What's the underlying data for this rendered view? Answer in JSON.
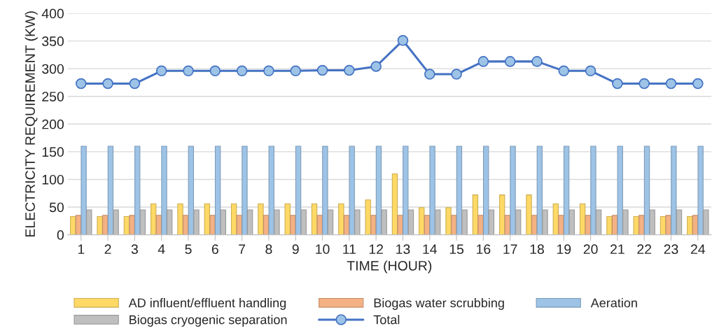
{
  "chart_data": {
    "type": "bar",
    "xlabel": "TIME (HOUR)",
    "ylabel": "ELECTRICITY REQUIREMENT (KW)",
    "categories": [
      "1",
      "2",
      "3",
      "4",
      "5",
      "6",
      "7",
      "8",
      "9",
      "10",
      "11",
      "12",
      "13",
      "14",
      "15",
      "16",
      "17",
      "18",
      "19",
      "20",
      "21",
      "22",
      "23",
      "24"
    ],
    "series": [
      {
        "name": "AD influent/effluent handling",
        "color": "#ffd966",
        "values": [
          33,
          33,
          33,
          56,
          56,
          56,
          56,
          56,
          56,
          56,
          56,
          63,
          110,
          49,
          49,
          72,
          72,
          72,
          56,
          56,
          33,
          33,
          33,
          33
        ]
      },
      {
        "name": "Biogas water scrubbing",
        "color": "#f4b183",
        "values": [
          35,
          35,
          35,
          35,
          35,
          35,
          35,
          35,
          35,
          35,
          35,
          35,
          35,
          35,
          35,
          35,
          35,
          35,
          35,
          35,
          35,
          35,
          35,
          35
        ]
      },
      {
        "name": "Aeration",
        "color": "#9dc3e6",
        "values": [
          160,
          160,
          160,
          160,
          160,
          160,
          160,
          160,
          160,
          160,
          160,
          160,
          160,
          160,
          160,
          160,
          160,
          160,
          160,
          160,
          160,
          160,
          160,
          160
        ]
      },
      {
        "name": "Biogas cryogenic separation",
        "color": "#bfbfbf",
        "values": [
          45,
          45,
          45,
          45,
          45,
          45,
          45,
          45,
          45,
          45,
          45,
          45,
          45,
          45,
          45,
          45,
          45,
          45,
          45,
          45,
          45,
          45,
          45,
          45
        ]
      },
      {
        "name": "Total",
        "type": "line",
        "color": "#4472c4",
        "marker": "circle",
        "values": [
          273,
          273,
          273,
          296,
          296,
          296,
          296,
          296,
          296,
          297,
          297,
          304,
          351,
          290,
          290,
          313,
          313,
          313,
          296,
          296,
          273,
          273,
          273,
          273
        ]
      }
    ],
    "ylim": [
      0,
      400
    ],
    "yticks": [
      0,
      50,
      100,
      150,
      200,
      250,
      300,
      350,
      400
    ],
    "grid": "y",
    "legend": "bottom"
  }
}
